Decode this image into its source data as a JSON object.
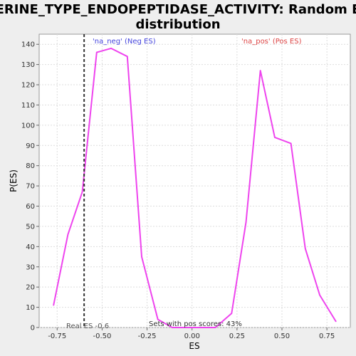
{
  "chart_data": {
    "type": "line",
    "title_line1": "SERINE_TYPE_ENDOPEPTIDASE_ACTIVITY: Random ES",
    "title_line2": "distribution",
    "xlabel": "ES",
    "ylabel": "P(ES)",
    "xlim": [
      -0.85,
      0.88
    ],
    "ylim": [
      0,
      145
    ],
    "x_ticks": [
      -0.75,
      -0.5,
      -0.25,
      0.0,
      0.25,
      0.5,
      0.75
    ],
    "x_tick_labels": [
      "-0.75",
      "-0.50",
      "-0.25",
      "0.00",
      "0.25",
      "0.50",
      "0.75"
    ],
    "y_ticks": [
      0,
      10,
      20,
      30,
      40,
      50,
      60,
      70,
      80,
      90,
      100,
      110,
      120,
      130,
      140
    ],
    "y_tick_labels": [
      "0",
      "10",
      "20",
      "30",
      "40",
      "50",
      "60",
      "70",
      "80",
      "90",
      "100",
      "110",
      "120",
      "130",
      "140"
    ],
    "grid": true,
    "series": [
      {
        "color": "#ee44ee",
        "x": [
          -0.77,
          -0.69,
          -0.61,
          -0.53,
          -0.45,
          -0.36,
          -0.28,
          -0.19,
          -0.11,
          -0.03,
          0.05,
          0.13,
          0.22,
          0.3,
          0.38,
          0.46,
          0.55,
          0.63,
          0.71,
          0.8
        ],
        "y": [
          11,
          46,
          67,
          136,
          138,
          134,
          35,
          4,
          0,
          0,
          0,
          0,
          7,
          52,
          127,
          94,
          91,
          39,
          16,
          3
        ]
      }
    ],
    "real_es": -0.6,
    "annotations": {
      "neg_label": "'na_neg' (Neg ES)",
      "pos_label": "'na_pos' (Pos ES)",
      "real_es_label": "Real ES -0.6",
      "pos_scores_label": "Sets with pos scores: 43%"
    },
    "colors": {
      "neg_label": "#4444dd",
      "pos_label": "#dd4444",
      "line": "#ee44ee",
      "real_es_line": "#333333"
    }
  }
}
